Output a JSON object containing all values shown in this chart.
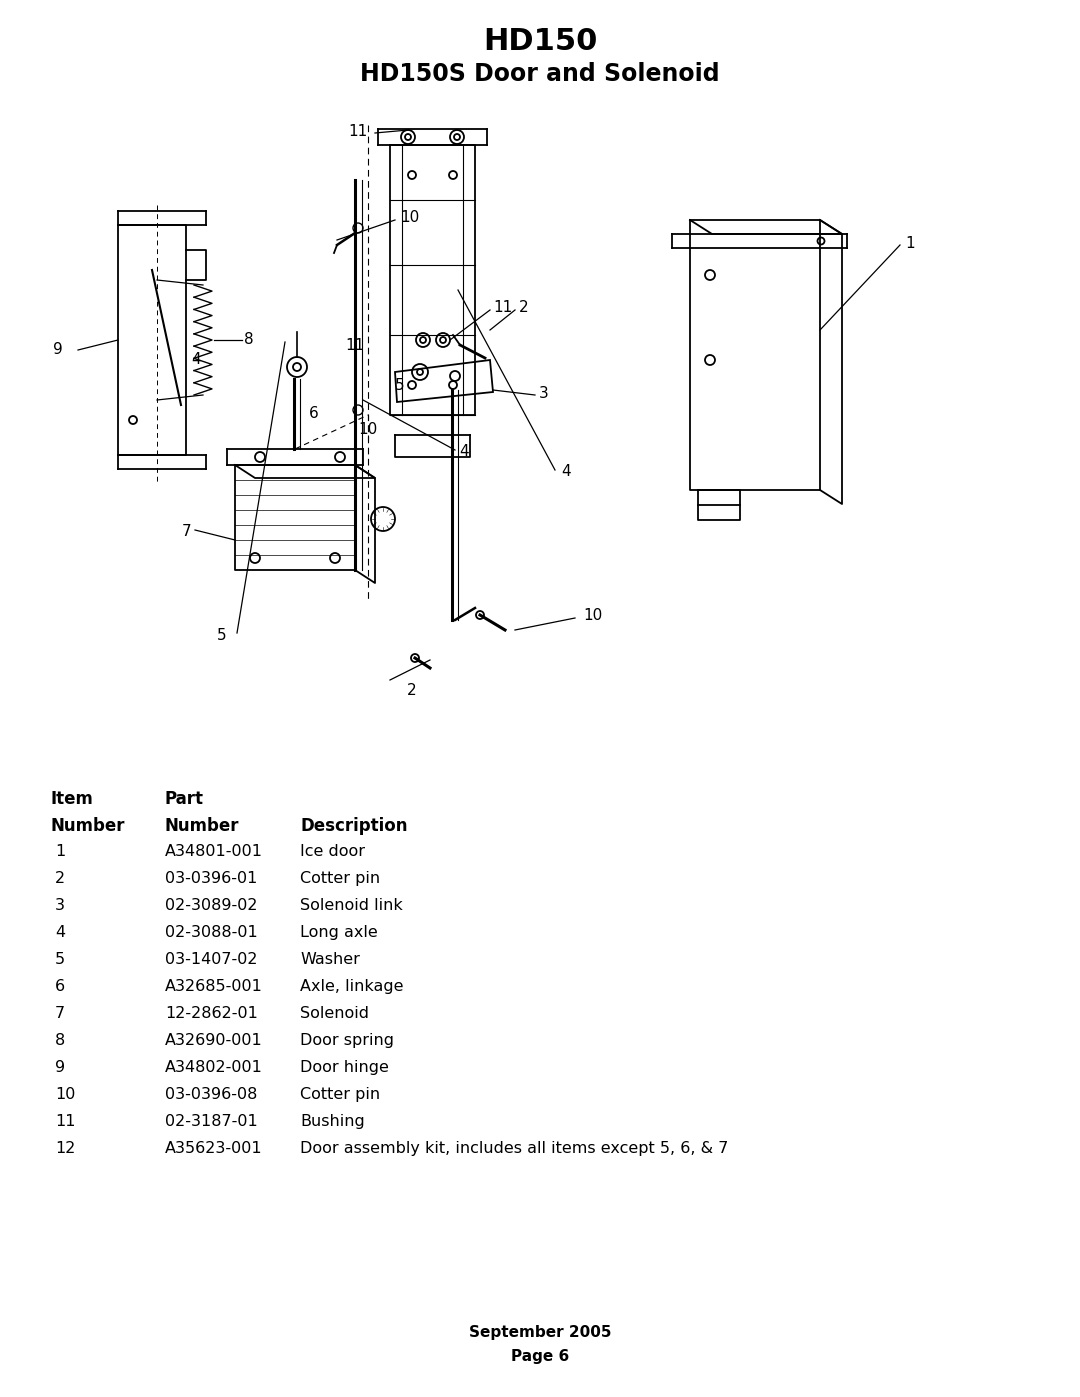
{
  "title_line1": "HD150",
  "title_line2": "HD150S Door and Solenoid",
  "footer_line1": "September 2005",
  "footer_line2": "Page 6",
  "table_header_col1": "Item",
  "table_header_col2": "Part",
  "table_subheader_col1": "Number",
  "table_subheader_col2": "Number",
  "table_subheader_col3": "Description",
  "parts": [
    {
      "item": "1",
      "part": "A34801-001",
      "desc": "Ice door"
    },
    {
      "item": "2",
      "part": "03-0396-01",
      "desc": "Cotter pin"
    },
    {
      "item": "3",
      "part": "02-3089-02",
      "desc": "Solenoid link"
    },
    {
      "item": "4",
      "part": "02-3088-01",
      "desc": "Long axle"
    },
    {
      "item": "5",
      "part": "03-1407-02",
      "desc": "Washer"
    },
    {
      "item": "6",
      "part": "A32685-001",
      "desc": "Axle, linkage"
    },
    {
      "item": "7",
      "part": "12-2862-01",
      "desc": "Solenoid"
    },
    {
      "item": "8",
      "part": "A32690-001",
      "desc": "Door spring"
    },
    {
      "item": "9",
      "part": "A34802-001",
      "desc": "Door hinge"
    },
    {
      "item": "10",
      "part": "03-0396-08",
      "desc": "Cotter pin"
    },
    {
      "item": "11",
      "part": "02-3187-01",
      "desc": "Bushing"
    },
    {
      "item": "12",
      "part": "A35623-001",
      "desc": "Door assembly kit, includes all items except 5, 6, & 7"
    }
  ],
  "bg_color": "#ffffff",
  "text_color": "#000000"
}
